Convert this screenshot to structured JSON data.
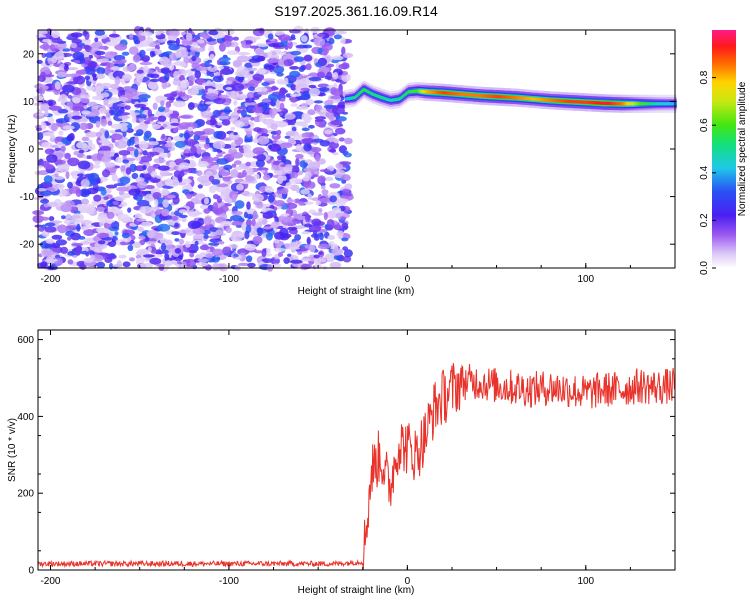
{
  "title": "S197.2025.361.16.09.R14",
  "chart_data": [
    {
      "type": "heatmap",
      "xlabel": "Height of straight line (km)",
      "ylabel": "Frequency (Hz)",
      "xlim": [
        -207,
        150
      ],
      "ylim": [
        -25,
        25
      ],
      "x_ticks": [
        -200,
        -100,
        0,
        100
      ],
      "y_ticks": [
        20,
        10,
        0,
        -10,
        -20
      ],
      "noise_region": {
        "x_range": [
          -207,
          -33
        ],
        "amplitude_range": [
          0.05,
          0.35
        ]
      },
      "ridge": {
        "x": [
          -35,
          -30,
          -25,
          -20,
          -15,
          -10,
          -5,
          0,
          5,
          10,
          20,
          30,
          40,
          50,
          60,
          70,
          80,
          90,
          100,
          110,
          120,
          130,
          140,
          150
        ],
        "freq": [
          10.5,
          10.8,
          12.5,
          11.5,
          10.8,
          10.2,
          10.5,
          12.0,
          12.2,
          12.0,
          11.8,
          11.5,
          11.2,
          11.0,
          10.8,
          10.5,
          10.2,
          10.0,
          9.8,
          9.6,
          9.5,
          9.5,
          9.5,
          9.5
        ],
        "amp": [
          0.4,
          0.5,
          0.55,
          0.5,
          0.5,
          0.45,
          0.5,
          0.55,
          0.6,
          0.8,
          0.9,
          0.85,
          0.85,
          0.9,
          0.85,
          0.8,
          0.85,
          0.9,
          0.9,
          0.95,
          0.85,
          0.6,
          0.45,
          0.4
        ]
      },
      "colorbar": {
        "label": "Normalized spectral amplitude",
        "range": [
          0,
          1
        ],
        "ticks": [
          0.0,
          0.2,
          0.4,
          0.6,
          0.8
        ],
        "tick_labels": [
          "0.0",
          "0.2",
          "0.4",
          "0.6",
          "0.8"
        ]
      }
    },
    {
      "type": "line",
      "xlabel": "Height of straight line (km)",
      "ylabel": "SNR (10 * v/v)",
      "xlim": [
        -207,
        150
      ],
      "ylim": [
        0,
        625
      ],
      "x_ticks": [
        -200,
        -100,
        0,
        100
      ],
      "y_ticks": [
        0,
        200,
        400,
        600
      ],
      "color": "#e8322a",
      "series": [
        {
          "x": [
            -207,
            -180,
            -150,
            -120,
            -90,
            -60,
            -40,
            -25,
            -20,
            -15,
            -10,
            -5,
            0,
            5,
            10,
            15,
            20,
            25,
            30,
            40,
            50,
            60,
            70,
            80,
            90,
            100,
            110,
            120,
            130,
            140,
            150
          ],
          "values": [
            15,
            15,
            15,
            15,
            15,
            15,
            15,
            20,
            260,
            300,
            210,
            330,
            320,
            300,
            350,
            420,
            450,
            470,
            490,
            490,
            480,
            475,
            470,
            475,
            470,
            460,
            470,
            470,
            480,
            475,
            480
          ]
        }
      ]
    }
  ]
}
